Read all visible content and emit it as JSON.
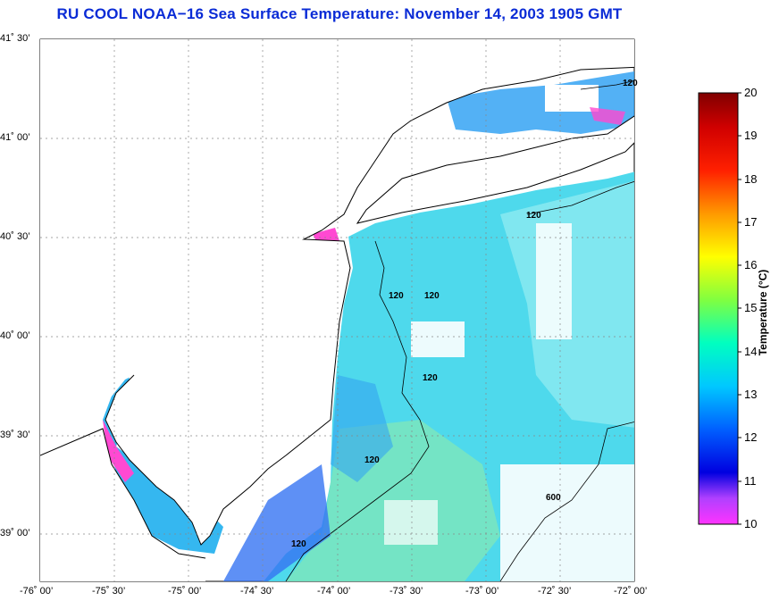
{
  "title": "RU COOL  NOAA−16  Sea Surface Temperature:  November 14, 2003 1905 GMT",
  "map": {
    "lon_range": [
      -76.0,
      -72.0
    ],
    "lat_range": [
      38.75,
      41.5
    ],
    "lat_labels": [
      "41˚ 30’",
      "41˚ 00’",
      "40˚ 30’",
      "40˚ 00’",
      "39˚ 30’",
      "39˚ 00’"
    ],
    "lon_labels": [
      "-76˚ 00’",
      "-75˚ 30’",
      "-75˚ 00’",
      "-74˚ 30’",
      "-74˚ 00’",
      "-73˚ 30’",
      "-73˚ 00’",
      "-72˚ 30’",
      "-72˚ 00’"
    ],
    "grid": true,
    "contour_labels": [
      "120",
      "120",
      "120",
      "120",
      "120",
      "120",
      "120",
      "600"
    ]
  },
  "colorbar": {
    "title": "Temperature (°C)",
    "min": 10,
    "max": 20,
    "ticks": [
      "20",
      "19",
      "18",
      "17",
      "16",
      "15",
      "14",
      "13",
      "12",
      "11",
      "10"
    ],
    "colors": [
      "#ff33ff",
      "#0000e0",
      "#00c8ff",
      "#00ffa0",
      "#ffff00",
      "#ff9900",
      "#ff0000",
      "#800000"
    ]
  }
}
